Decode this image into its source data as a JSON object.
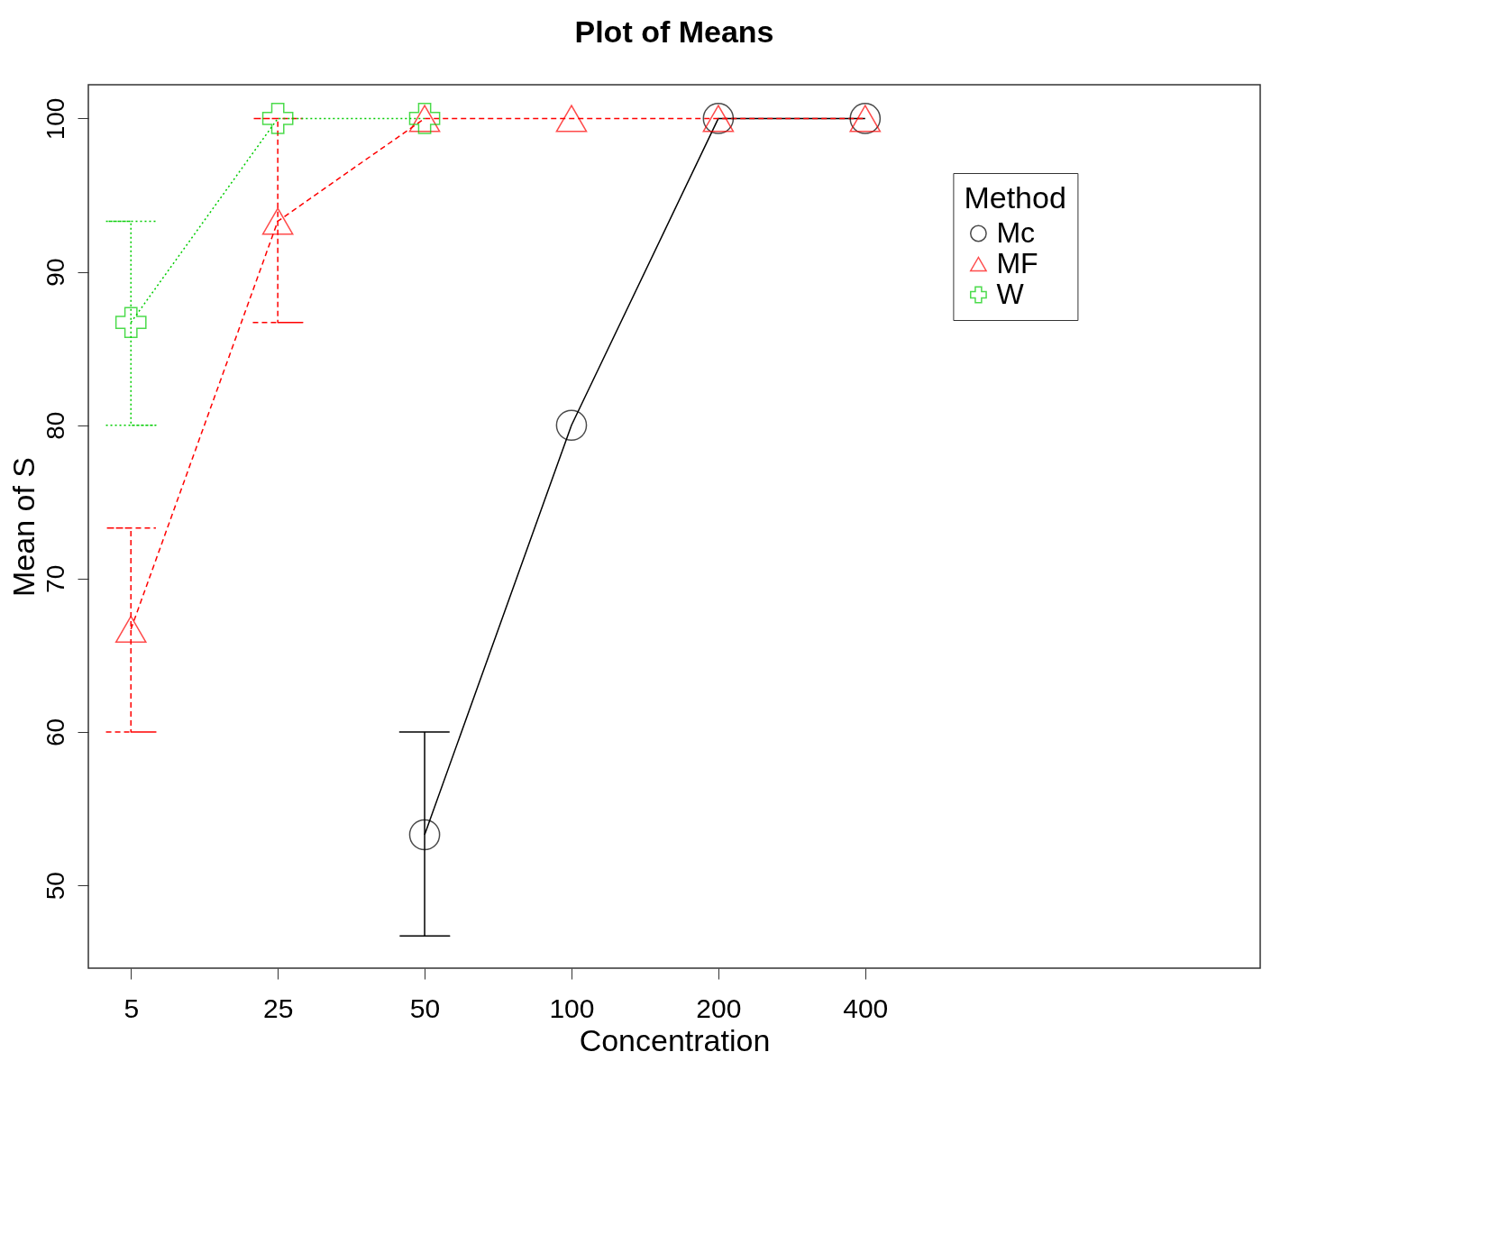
{
  "chart_data": {
    "type": "line",
    "title": "Plot of Means",
    "xlabel": "Concentration",
    "ylabel": "Mean of S",
    "legend_title": "Method",
    "categories": [
      "5",
      "25",
      "50",
      "100",
      "200",
      "400"
    ],
    "series": [
      {
        "name": "Mc",
        "color": "#000000",
        "marker": "circle",
        "line_style": "solid",
        "values": [
          null,
          null,
          53.3,
          80,
          100,
          100
        ],
        "errors": [
          null,
          null,
          [
            46.7,
            60
          ],
          null,
          null,
          null
        ]
      },
      {
        "name": "MF",
        "color": "#ff0000",
        "marker": "triangle",
        "line_style": "dashed",
        "values": [
          66.7,
          93.3,
          100,
          100,
          100,
          100
        ],
        "errors": [
          [
            60,
            73.3
          ],
          [
            86.7,
            100
          ],
          null,
          null,
          null,
          null
        ]
      },
      {
        "name": "W",
        "color": "#00cc00",
        "marker": "cross",
        "line_style": "dotted",
        "values": [
          86.7,
          100,
          100,
          null,
          null,
          null
        ],
        "errors": [
          [
            80,
            93.3
          ],
          null,
          null,
          null,
          null,
          null
        ]
      }
    ],
    "ylim": [
      44.6,
      102.2
    ],
    "yticks": [
      50,
      60,
      70,
      80,
      90,
      100
    ],
    "grid": false,
    "legend": "top right"
  }
}
